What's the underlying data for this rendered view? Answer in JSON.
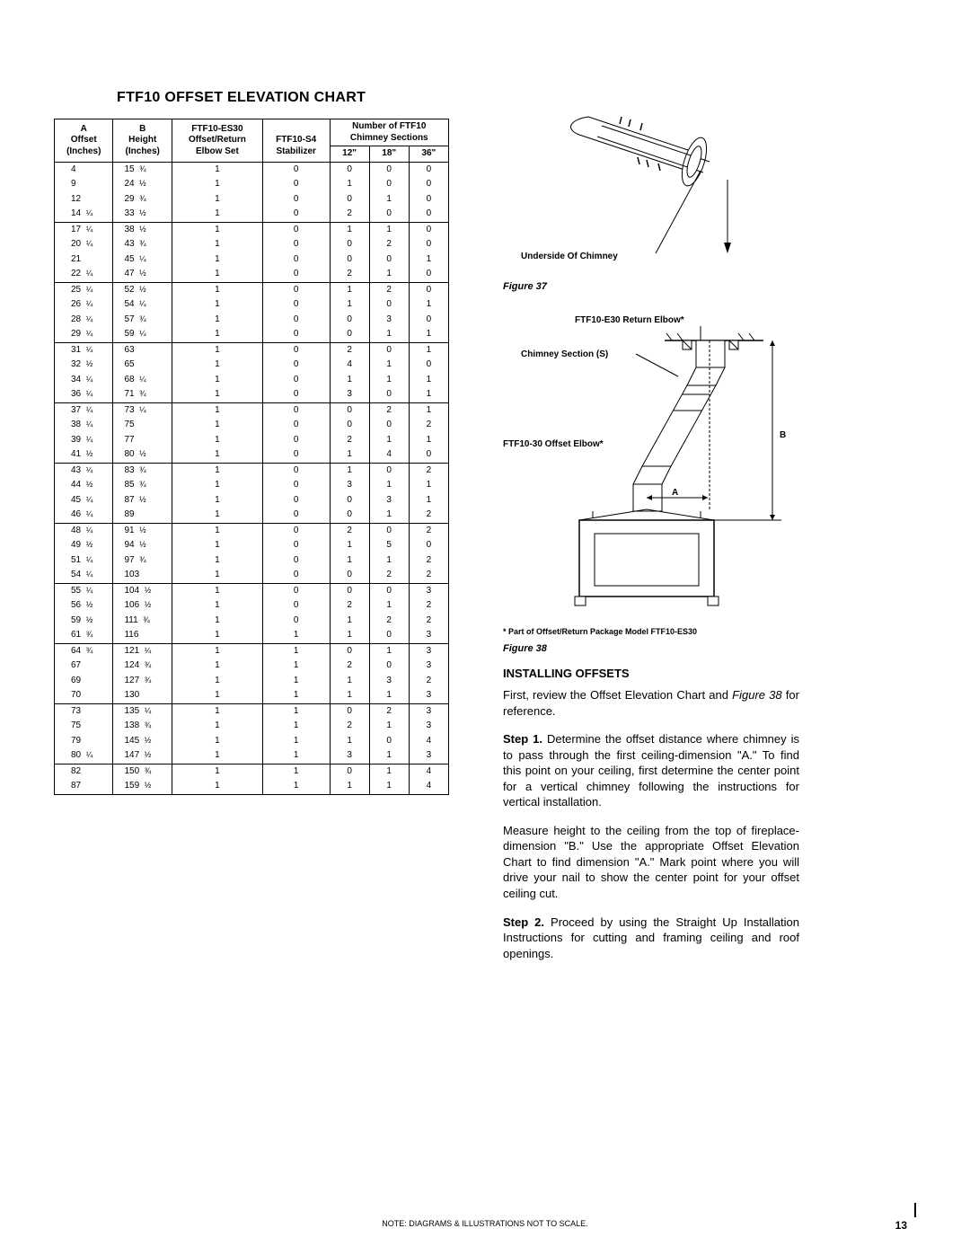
{
  "title": "FTF10 OFFSET ELEVATION CHART",
  "headers": {
    "a": "A",
    "offset": "Offset",
    "inches": "(Inches)",
    "b": "B",
    "height": "Height",
    "c1": "FTF10-ES30",
    "c2": "Offset/Return",
    "c3": "Elbow Set",
    "d1": "FTF10-S4",
    "d2": "Stabilizer",
    "e1": "Number of FTF10",
    "e2": "Chimney Sections",
    "t12": "12\"",
    "t18": "18\"",
    "t36": "36\""
  },
  "rows": [
    [
      "4",
      "",
      "15",
      "¾",
      "1",
      "0",
      "0",
      "0",
      "0"
    ],
    [
      "9",
      "",
      "24",
      "½",
      "1",
      "0",
      "1",
      "0",
      "0"
    ],
    [
      "12",
      "",
      "29",
      "¾",
      "1",
      "0",
      "0",
      "1",
      "0"
    ],
    [
      "14",
      "¼",
      "33",
      "½",
      "1",
      "0",
      "2",
      "0",
      "0"
    ],
    [
      "17",
      "¼",
      "38",
      "½",
      "1",
      "0",
      "1",
      "1",
      "0"
    ],
    [
      "20",
      "¼",
      "43",
      "¾",
      "1",
      "0",
      "0",
      "2",
      "0"
    ],
    [
      "21",
      "",
      "45",
      "¼",
      "1",
      "0",
      "0",
      "0",
      "1"
    ],
    [
      "22",
      "¼",
      "47",
      "½",
      "1",
      "0",
      "2",
      "1",
      "0"
    ],
    [
      "25",
      "¼",
      "52",
      "½",
      "1",
      "0",
      "1",
      "2",
      "0"
    ],
    [
      "26",
      "¼",
      "54",
      "¼",
      "1",
      "0",
      "1",
      "0",
      "1"
    ],
    [
      "28",
      "¼",
      "57",
      "¾",
      "1",
      "0",
      "0",
      "3",
      "0"
    ],
    [
      "29",
      "¼",
      "59",
      "¼",
      "1",
      "0",
      "0",
      "1",
      "1"
    ],
    [
      "31",
      "¼",
      "63",
      "",
      "1",
      "0",
      "2",
      "0",
      "1"
    ],
    [
      "32",
      "½",
      "65",
      "",
      "1",
      "0",
      "4",
      "1",
      "0"
    ],
    [
      "34",
      "¼",
      "68",
      "¼",
      "1",
      "0",
      "1",
      "1",
      "1"
    ],
    [
      "36",
      "¼",
      "71",
      "¾",
      "1",
      "0",
      "3",
      "0",
      "1"
    ],
    [
      "37",
      "¼",
      "73",
      "¼",
      "1",
      "0",
      "0",
      "2",
      "1"
    ],
    [
      "38",
      "¼",
      "75",
      "",
      "1",
      "0",
      "0",
      "0",
      "2"
    ],
    [
      "39",
      "¼",
      "77",
      "",
      "1",
      "0",
      "2",
      "1",
      "1"
    ],
    [
      "41",
      "½",
      "80",
      "½",
      "1",
      "0",
      "1",
      "4",
      "0"
    ],
    [
      "43",
      "¼",
      "83",
      "¾",
      "1",
      "0",
      "1",
      "0",
      "2"
    ],
    [
      "44",
      "½",
      "85",
      "¾",
      "1",
      "0",
      "3",
      "1",
      "1"
    ],
    [
      "45",
      "¼",
      "87",
      "½",
      "1",
      "0",
      "0",
      "3",
      "1"
    ],
    [
      "46",
      "¼",
      "89",
      "",
      "1",
      "0",
      "0",
      "1",
      "2"
    ],
    [
      "48",
      "¼",
      "91",
      "½",
      "1",
      "0",
      "2",
      "0",
      "2"
    ],
    [
      "49",
      "½",
      "94",
      "½",
      "1",
      "0",
      "1",
      "5",
      "0"
    ],
    [
      "51",
      "¼",
      "97",
      "¾",
      "1",
      "0",
      "1",
      "1",
      "2"
    ],
    [
      "54",
      "¼",
      "103",
      "",
      "1",
      "0",
      "0",
      "2",
      "2"
    ],
    [
      "55",
      "¼",
      "104",
      "½",
      "1",
      "0",
      "0",
      "0",
      "3"
    ],
    [
      "56",
      "½",
      "106",
      "½",
      "1",
      "0",
      "2",
      "1",
      "2"
    ],
    [
      "59",
      "½",
      "111",
      "¾",
      "1",
      "0",
      "1",
      "2",
      "2"
    ],
    [
      "61",
      "¾",
      "116",
      "",
      "1",
      "1",
      "1",
      "0",
      "3"
    ],
    [
      "64",
      "¾",
      "121",
      "¼",
      "1",
      "1",
      "0",
      "1",
      "3"
    ],
    [
      "67",
      "",
      "124",
      "¾",
      "1",
      "1",
      "2",
      "0",
      "3"
    ],
    [
      "69",
      "",
      "127",
      "¾",
      "1",
      "1",
      "1",
      "3",
      "2"
    ],
    [
      "70",
      "",
      "130",
      "",
      "1",
      "1",
      "1",
      "1",
      "3"
    ],
    [
      "73",
      "",
      "135",
      "¼",
      "1",
      "1",
      "0",
      "2",
      "3"
    ],
    [
      "75",
      "",
      "138",
      "¾",
      "1",
      "1",
      "2",
      "1",
      "3"
    ],
    [
      "79",
      "",
      "145",
      "½",
      "1",
      "1",
      "1",
      "0",
      "4"
    ],
    [
      "80",
      "¼",
      "147",
      "½",
      "1",
      "1",
      "3",
      "1",
      "3"
    ],
    [
      "82",
      "",
      "150",
      "¾",
      "1",
      "1",
      "0",
      "1",
      "4"
    ],
    [
      "87",
      "",
      "159",
      "½",
      "1",
      "1",
      "1",
      "1",
      "4"
    ]
  ],
  "rowSeps": [
    4,
    8,
    12,
    16,
    20,
    24,
    28,
    32,
    36,
    40
  ],
  "fig37": {
    "label": "Figure 37",
    "underside": "Underside Of Chimney"
  },
  "fig38": {
    "label": "Figure 38",
    "returnElbow": "FTF10-E30 Return Elbow*",
    "chimneySection": "Chimney Section (S)",
    "offsetElbow": "FTF10-30 Offset Elbow*",
    "dimA": "A",
    "dimB": "B",
    "note": "* Part of Offset/Return Package Model FTF10-ES30"
  },
  "install": {
    "head": "INSTALLING OFFSETS",
    "p1a": "First, review the Offset Elevation Chart and ",
    "p1i": "Figure 38",
    "p1b": "  for reference.",
    "step1label": "Step 1.",
    "step1": " Determine the offset distance where chimney is to pass through the first ceiling-dimension \"A.\" To find this point on your ceiling, first determine the center point for a vertical chimney following the instructions for vertical installation.",
    "p2": "Measure height to the ceiling from the top of fireplace-dimension \"B.\" Use the appropriate Offset Elevation Chart to find dimension \"A.\" Mark point where you will drive your nail to show the center point for your offset ceiling cut.",
    "step2label": "Step 2.",
    "step2": " Proceed by using the Straight Up Installation Instructions for cutting and framing ceiling and roof openings."
  },
  "footnote": "NOTE: DIAGRAMS & ILLUSTRATIONS NOT TO SCALE.",
  "pagenum": "13"
}
